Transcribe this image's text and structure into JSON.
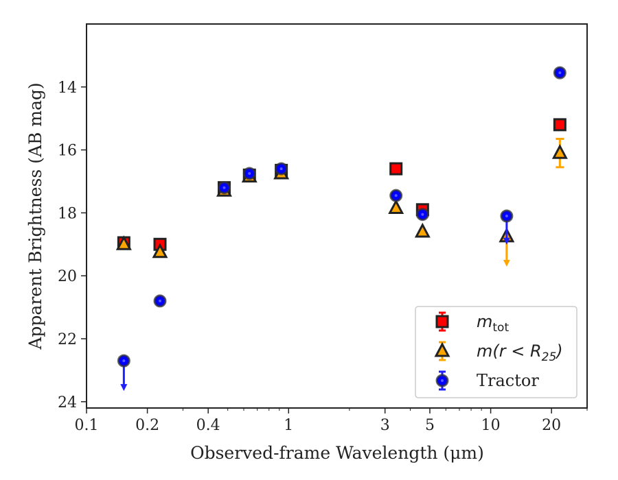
{
  "chart_data": {
    "type": "scatter",
    "xlabel": "Observed-frame Wavelength (μm)",
    "ylabel": "Apparent Brightness (AB mag)",
    "xscale": "log",
    "y_inverted": true,
    "xlim": [
      0.1,
      30
    ],
    "ylim": [
      24.2,
      12.0
    ],
    "xticks": [
      0.1,
      0.2,
      0.4,
      1,
      3,
      5,
      10,
      20
    ],
    "xtick_labels": [
      "0.1",
      "0.2",
      "0.4",
      "1",
      "3",
      "5",
      "10",
      "20"
    ],
    "yticks": [
      14,
      16,
      18,
      20,
      22,
      24
    ],
    "ytick_labels": [
      "14",
      "16",
      "18",
      "20",
      "22",
      "24"
    ],
    "legend_position": "lower-right",
    "series": [
      {
        "name": "m_tot",
        "label_main": "m",
        "label_sub": "tot",
        "marker": "square",
        "color": "#ff0000",
        "edge_color": "#222222",
        "points": [
          {
            "x": 0.153,
            "y": 18.95
          },
          {
            "x": 0.231,
            "y": 19.0
          },
          {
            "x": 0.48,
            "y": 17.2
          },
          {
            "x": 0.64,
            "y": 16.8
          },
          {
            "x": 0.92,
            "y": 16.65
          },
          {
            "x": 3.4,
            "y": 16.6
          },
          {
            "x": 4.6,
            "y": 17.9
          },
          {
            "x": 22.0,
            "y": 15.2
          }
        ]
      },
      {
        "name": "m(r < R25)",
        "label_main": "m(r < R",
        "label_sub": "25",
        "label_end": ")",
        "marker": "triangle",
        "color": "#ffa500",
        "edge_color": "#222222",
        "points": [
          {
            "x": 0.153,
            "y": 19.0
          },
          {
            "x": 0.231,
            "y": 19.25
          },
          {
            "x": 0.48,
            "y": 17.3
          },
          {
            "x": 0.64,
            "y": 16.85
          },
          {
            "x": 0.92,
            "y": 16.75
          },
          {
            "x": 3.4,
            "y": 17.85
          },
          {
            "x": 4.6,
            "y": 18.6
          },
          {
            "x": 12.0,
            "y": 18.75,
            "upper_limit": true,
            "limit_to": 19.6
          },
          {
            "x": 22.0,
            "y": 16.1,
            "yerr": 0.45
          }
        ]
      },
      {
        "name": "Tractor",
        "label_main": "Tractor",
        "marker": "circle",
        "color": "#0000ff",
        "edge_color": "#222222",
        "points": [
          {
            "x": 0.153,
            "y": 22.7,
            "upper_limit": true,
            "limit_to": 23.55
          },
          {
            "x": 0.231,
            "y": 20.8
          },
          {
            "x": 0.48,
            "y": 17.2
          },
          {
            "x": 0.64,
            "y": 16.75
          },
          {
            "x": 0.92,
            "y": 16.6
          },
          {
            "x": 3.4,
            "y": 17.45
          },
          {
            "x": 4.6,
            "y": 18.05
          },
          {
            "x": 12.0,
            "y": 18.1,
            "upper_limit": true,
            "limit_to": 18.9
          },
          {
            "x": 22.0,
            "y": 13.55
          }
        ]
      }
    ]
  }
}
